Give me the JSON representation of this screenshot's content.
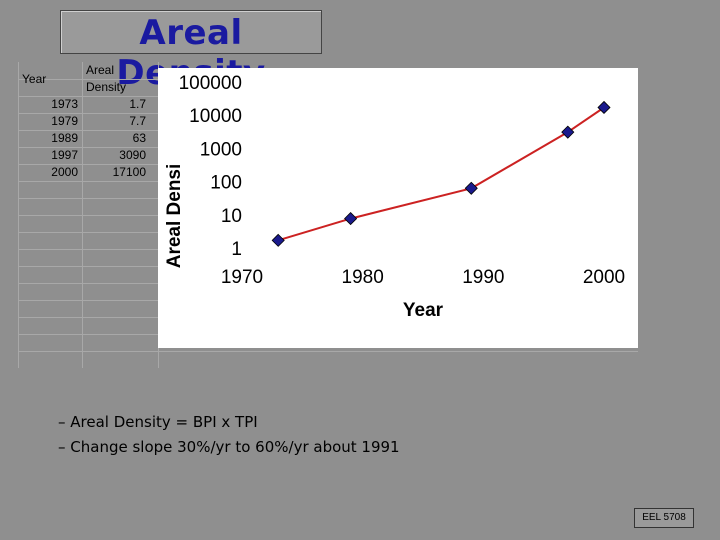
{
  "slide": {
    "title": "Areal Density",
    "bullets": [
      "– Areal Density = BPI x TPI",
      "– Change slope 30%/yr to 60%/yr about 1991"
    ],
    "footer": "EEL 5708"
  },
  "table": {
    "headers": [
      "Year",
      "Areal Density"
    ],
    "rows": [
      [
        "1973",
        "1.7"
      ],
      [
        "1979",
        "7.7"
      ],
      [
        "1989",
        "63"
      ],
      [
        "1997",
        "3090"
      ],
      [
        "2000",
        "17100"
      ]
    ]
  },
  "chart_data": {
    "type": "line",
    "title": "",
    "xlabel": "Year",
    "ylabel": "Areal Densi",
    "x": [
      1973,
      1979,
      1989,
      1997,
      2000
    ],
    "series": [
      {
        "values": [
          1.7,
          7.7,
          63,
          3090,
          17100
        ]
      }
    ],
    "xlim": [
      1970,
      2000
    ],
    "ylim": [
      1,
      100000
    ],
    "yscale": "log",
    "xticks": [
      "1970",
      "1980",
      "1990",
      "2000"
    ],
    "yticks": [
      "1",
      "10",
      "100",
      "1000",
      "10000",
      "100000"
    ],
    "grid": false,
    "legend": "none",
    "colors": {
      "line": "#cc2222",
      "marker": "#1a1a8c"
    }
  }
}
